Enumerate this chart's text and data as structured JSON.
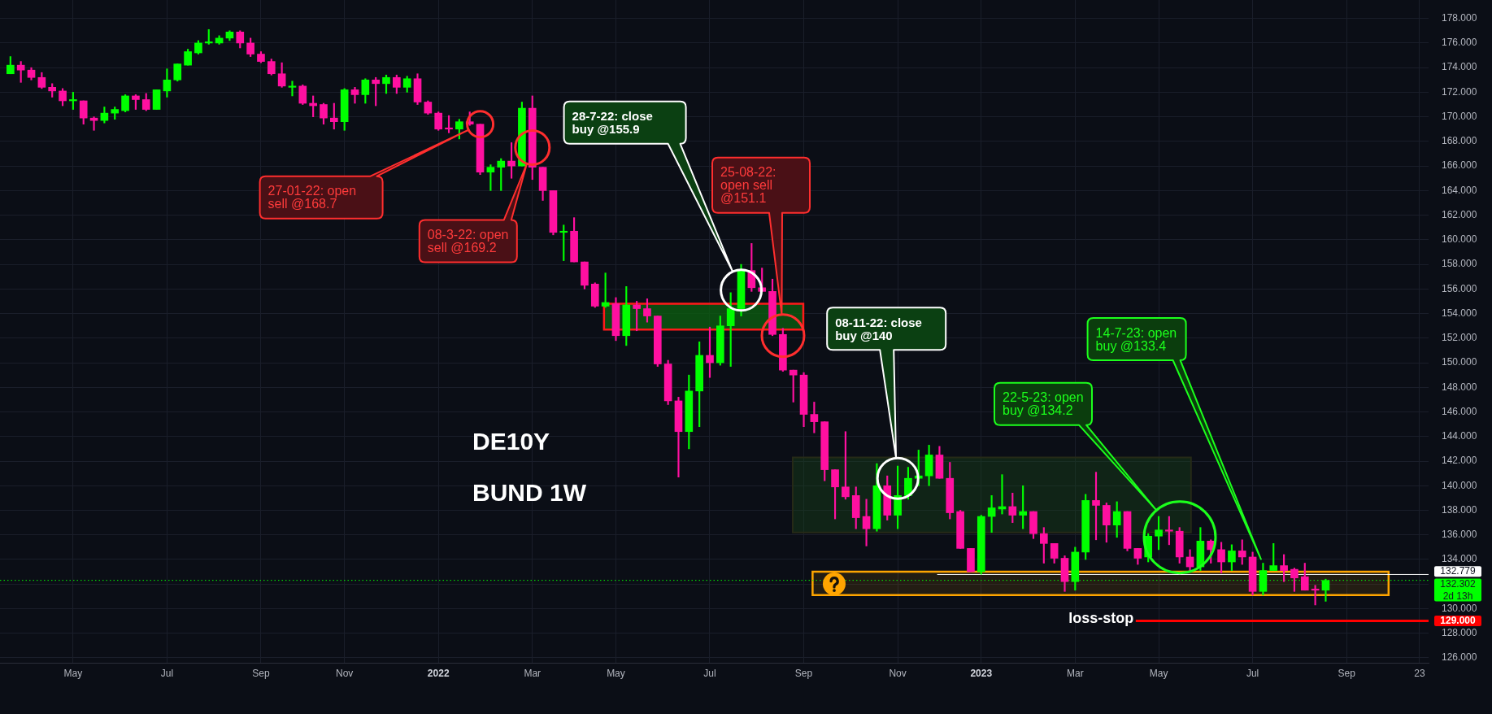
{
  "chart_data": {
    "type": "candlestick",
    "title": "DE10Y",
    "subtitle": "BUND 1W",
    "x": [
      "2021-03-22",
      "2021-03-29",
      "2021-04-05",
      "2021-04-12",
      "2021-04-19",
      "2021-04-26",
      "2021-05-03",
      "2021-05-10",
      "2021-05-17",
      "2021-05-24",
      "2021-05-31",
      "2021-06-07",
      "2021-06-14",
      "2021-06-21",
      "2021-06-28",
      "2021-07-05",
      "2021-07-12",
      "2021-07-19",
      "2021-07-26",
      "2021-08-02",
      "2021-08-09",
      "2021-08-16",
      "2021-08-23",
      "2021-08-30",
      "2021-09-06",
      "2021-09-13",
      "2021-09-20",
      "2021-09-27",
      "2021-10-04",
      "2021-10-11",
      "2021-10-18",
      "2021-10-25",
      "2021-11-01",
      "2021-11-08",
      "2021-11-15",
      "2021-11-22",
      "2021-11-29",
      "2021-12-06",
      "2021-12-13",
      "2021-12-20",
      "2021-12-27",
      "2022-01-03",
      "2022-01-10",
      "2022-01-17",
      "2022-01-24",
      "2022-01-31",
      "2022-02-07",
      "2022-02-14",
      "2022-02-21",
      "2022-02-28",
      "2022-03-07",
      "2022-03-14",
      "2022-03-21",
      "2022-03-28",
      "2022-04-04",
      "2022-04-11",
      "2022-04-18",
      "2022-04-25",
      "2022-05-02",
      "2022-05-09",
      "2022-05-16",
      "2022-05-23",
      "2022-05-30",
      "2022-06-06",
      "2022-06-13",
      "2022-06-20",
      "2022-06-27",
      "2022-07-04",
      "2022-07-11",
      "2022-07-18",
      "2022-07-25",
      "2022-08-01",
      "2022-08-08",
      "2022-08-15",
      "2022-08-22",
      "2022-08-29",
      "2022-09-05",
      "2022-09-12",
      "2022-09-19",
      "2022-09-26",
      "2022-10-03",
      "2022-10-10",
      "2022-10-17",
      "2022-10-24",
      "2022-10-31",
      "2022-11-07",
      "2022-11-14",
      "2022-11-21",
      "2022-11-28",
      "2022-12-05",
      "2022-12-12",
      "2022-12-19",
      "2022-12-26",
      "2023-01-02",
      "2023-01-09",
      "2023-01-16",
      "2023-01-23",
      "2023-01-30",
      "2023-02-06",
      "2023-02-13",
      "2023-02-20",
      "2023-02-27",
      "2023-03-06",
      "2023-03-13",
      "2023-03-20",
      "2023-03-27",
      "2023-04-03",
      "2023-04-10",
      "2023-04-17",
      "2023-04-24",
      "2023-05-01",
      "2023-05-08",
      "2023-05-15",
      "2023-05-22",
      "2023-05-29",
      "2023-06-05",
      "2023-06-12",
      "2023-06-19",
      "2023-06-26",
      "2023-07-03",
      "2023-07-10",
      "2023-07-17",
      "2023-07-24",
      "2023-07-31",
      "2023-08-07",
      "2023-08-14",
      "2023-08-21"
    ],
    "ohlc": [
      [
        173.5,
        174.9,
        173.5,
        174.2
      ],
      [
        174.2,
        174.5,
        172.8,
        173.8
      ],
      [
        173.8,
        174.0,
        173.0,
        173.2
      ],
      [
        173.2,
        173.6,
        172.3,
        172.4
      ],
      [
        172.4,
        172.7,
        171.6,
        172.1
      ],
      [
        172.1,
        172.3,
        170.9,
        171.3
      ],
      [
        171.3,
        172.0,
        170.6,
        171.4
      ],
      [
        171.3,
        171.3,
        169.4,
        169.9
      ],
      [
        169.9,
        170.0,
        168.9,
        169.7
      ],
      [
        169.7,
        170.8,
        169.5,
        170.3
      ],
      [
        170.3,
        170.8,
        169.8,
        170.6
      ],
      [
        170.5,
        171.8,
        170.4,
        171.7
      ],
      [
        171.7,
        171.8,
        170.6,
        171.4
      ],
      [
        171.4,
        171.9,
        170.5,
        170.6
      ],
      [
        170.6,
        172.2,
        170.6,
        172.2
      ],
      [
        172.1,
        173.9,
        171.6,
        173.0
      ],
      [
        173.0,
        174.3,
        172.9,
        174.3
      ],
      [
        174.2,
        175.5,
        174.2,
        175.3
      ],
      [
        175.2,
        176.2,
        175.1,
        176.0
      ],
      [
        176.0,
        177.1,
        175.9,
        176.1
      ],
      [
        176.0,
        176.6,
        175.9,
        176.4
      ],
      [
        176.4,
        177.0,
        176.2,
        176.9
      ],
      [
        176.9,
        177.0,
        175.6,
        176.0
      ],
      [
        176.0,
        176.4,
        174.9,
        175.1
      ],
      [
        175.1,
        175.3,
        174.4,
        174.5
      ],
      [
        174.5,
        174.7,
        173.4,
        173.5
      ],
      [
        173.5,
        174.4,
        172.4,
        172.5
      ],
      [
        172.4,
        172.9,
        171.7,
        172.5
      ],
      [
        172.5,
        172.6,
        171.0,
        171.1
      ],
      [
        171.1,
        171.7,
        170.0,
        170.9
      ],
      [
        171.0,
        171.1,
        169.4,
        169.9
      ],
      [
        169.9,
        171.1,
        169.0,
        169.6
      ],
      [
        169.6,
        172.3,
        168.9,
        172.2
      ],
      [
        172.2,
        172.4,
        171.1,
        171.8
      ],
      [
        171.8,
        173.1,
        171.1,
        173.0
      ],
      [
        173.0,
        173.2,
        170.9,
        172.7
      ],
      [
        172.7,
        173.4,
        171.9,
        173.2
      ],
      [
        173.2,
        173.4,
        171.9,
        172.4
      ],
      [
        172.4,
        173.3,
        172.0,
        173.1
      ],
      [
        173.1,
        173.5,
        171.0,
        171.2
      ],
      [
        171.2,
        171.3,
        170.2,
        170.3
      ],
      [
        170.3,
        170.4,
        168.9,
        169.0
      ],
      [
        169.1,
        170.1,
        168.7,
        169.0
      ],
      [
        169.0,
        169.8,
        168.2,
        169.6
      ],
      [
        169.6,
        170.4,
        169.3,
        169.4
      ],
      [
        169.4,
        169.4,
        165.3,
        165.5
      ],
      [
        165.5,
        166.1,
        164.0,
        165.9
      ],
      [
        165.9,
        166.6,
        164.0,
        166.4
      ],
      [
        166.4,
        167.9,
        165.0,
        166.0
      ],
      [
        166.0,
        171.2,
        166.0,
        170.7
      ],
      [
        170.7,
        171.7,
        164.9,
        165.9
      ],
      [
        165.9,
        165.9,
        163.2,
        164.0
      ],
      [
        164.0,
        164.0,
        160.4,
        160.6
      ],
      [
        160.6,
        161.2,
        158.3,
        160.7
      ],
      [
        160.7,
        161.8,
        158.2,
        158.2
      ],
      [
        158.2,
        158.2,
        156.0,
        156.3
      ],
      [
        156.4,
        156.5,
        154.5,
        154.6
      ],
      [
        154.6,
        157.3,
        154.5,
        154.9
      ],
      [
        154.8,
        155.3,
        151.8,
        152.2
      ],
      [
        152.2,
        156.2,
        151.4,
        154.7
      ],
      [
        154.7,
        155.0,
        152.6,
        154.4
      ],
      [
        154.4,
        155.2,
        153.3,
        153.8
      ],
      [
        153.8,
        153.8,
        149.7,
        149.9
      ],
      [
        149.9,
        150.2,
        146.6,
        146.9
      ],
      [
        146.9,
        147.2,
        140.7,
        144.4
      ],
      [
        144.4,
        149.0,
        143.0,
        147.7
      ],
      [
        147.7,
        151.7,
        144.8,
        150.6
      ],
      [
        150.6,
        152.9,
        148.8,
        150.0
      ],
      [
        150.0,
        153.8,
        149.8,
        153.0
      ],
      [
        153.0,
        155.7,
        149.7,
        154.4
      ],
      [
        154.4,
        158.0,
        153.8,
        157.5
      ],
      [
        157.5,
        159.7,
        155.8,
        156.1
      ],
      [
        156.1,
        157.7,
        155.8,
        155.8
      ],
      [
        155.8,
        156.8,
        152.2,
        152.3
      ],
      [
        152.3,
        152.8,
        149.3,
        149.4
      ],
      [
        149.4,
        149.4,
        146.8,
        149.0
      ],
      [
        149.0,
        149.2,
        144.8,
        145.8
      ],
      [
        145.8,
        146.8,
        144.3,
        145.2
      ],
      [
        145.2,
        145.2,
        140.4,
        141.3
      ],
      [
        141.3,
        141.3,
        137.3,
        139.9
      ],
      [
        139.9,
        144.4,
        138.9,
        139.1
      ],
      [
        139.2,
        139.9,
        136.5,
        137.4
      ],
      [
        137.5,
        138.9,
        135.1,
        136.5
      ],
      [
        136.5,
        141.8,
        136.3,
        140.0
      ],
      [
        140.0,
        140.8,
        137.2,
        137.6
      ],
      [
        137.6,
        141.6,
        136.5,
        139.2
      ],
      [
        139.2,
        141.5,
        138.9,
        140.6
      ],
      [
        140.6,
        142.9,
        140.0,
        140.8
      ],
      [
        140.8,
        143.3,
        140.0,
        142.5
      ],
      [
        142.5,
        143.2,
        140.6,
        140.6
      ],
      [
        140.6,
        141.9,
        137.3,
        137.8
      ],
      [
        137.9,
        138.0,
        134.9,
        134.9
      ],
      [
        134.9,
        134.9,
        133.0,
        133.0
      ],
      [
        133.0,
        137.6,
        132.8,
        137.5
      ],
      [
        137.5,
        139.2,
        136.2,
        138.2
      ],
      [
        138.1,
        140.9,
        137.7,
        138.3
      ],
      [
        138.3,
        139.4,
        137.0,
        137.6
      ],
      [
        137.6,
        140.0,
        136.5,
        137.9
      ],
      [
        137.9,
        137.9,
        135.7,
        136.1
      ],
      [
        136.1,
        136.6,
        133.7,
        135.3
      ],
      [
        135.3,
        135.3,
        133.7,
        134.1
      ],
      [
        134.1,
        134.3,
        131.4,
        132.2
      ],
      [
        132.2,
        135.0,
        131.5,
        134.6
      ],
      [
        134.6,
        139.3,
        134.0,
        138.8
      ],
      [
        138.8,
        141.1,
        135.6,
        138.4
      ],
      [
        138.4,
        138.6,
        135.4,
        136.8
      ],
      [
        136.8,
        138.7,
        135.8,
        137.9
      ],
      [
        137.9,
        137.9,
        134.7,
        134.9
      ],
      [
        134.9,
        134.9,
        133.6,
        134.1
      ],
      [
        134.2,
        136.1,
        133.8,
        135.9
      ],
      [
        135.9,
        137.5,
        134.8,
        136.4
      ],
      [
        136.4,
        137.5,
        135.2,
        136.3
      ],
      [
        136.3,
        136.6,
        133.7,
        134.2
      ],
      [
        134.2,
        134.8,
        133.0,
        133.4
      ],
      [
        133.4,
        136.6,
        133.1,
        135.5
      ],
      [
        135.5,
        135.6,
        133.7,
        134.8
      ],
      [
        134.8,
        135.4,
        132.9,
        133.8
      ],
      [
        133.8,
        135.2,
        133.1,
        134.7
      ],
      [
        134.7,
        135.6,
        133.6,
        134.2
      ],
      [
        134.2,
        134.6,
        131.1,
        131.4
      ],
      [
        131.4,
        133.7,
        131.1,
        133.1
      ],
      [
        133.1,
        135.3,
        133.1,
        133.5
      ],
      [
        133.5,
        134.4,
        132.2,
        133.1
      ],
      [
        133.2,
        133.3,
        131.4,
        132.5
      ],
      [
        132.6,
        133.7,
        131.5,
        131.5
      ],
      [
        131.6,
        131.9,
        130.3,
        131.5
      ],
      [
        131.5,
        132.4,
        130.6,
        132.3
      ]
    ],
    "colors": [
      "#00ff00",
      "#ff10a0",
      "#ff10a0",
      "#ff10a0",
      "#ff10a0",
      "#ff10a0",
      "#00ff00",
      "#ff10a0",
      "#ff10a0",
      "#00ff00",
      "#00ff00",
      "#00ff00",
      "#ff10a0",
      "#ff10a0",
      "#00ff00",
      "#00ff00",
      "#00ff00",
      "#00ff00",
      "#00ff00",
      "#00ff00",
      "#00ff00",
      "#00ff00",
      "#ff10a0",
      "#ff10a0",
      "#ff10a0",
      "#ff10a0",
      "#ff10a0",
      "#00ff00",
      "#ff10a0",
      "#ff10a0",
      "#ff10a0",
      "#ff10a0",
      "#00ff00",
      "#ff10a0",
      "#00ff00",
      "#ff10a0",
      "#00ff00",
      "#ff10a0",
      "#00ff00",
      "#ff10a0",
      "#ff10a0",
      "#ff10a0",
      "#ff10a0",
      "#00ff00",
      "#ff10a0",
      "#ff10a0",
      "#00ff00",
      "#00ff00",
      "#ff10a0",
      "#00ff00",
      "#ff10a0",
      "#ff10a0",
      "#ff10a0",
      "#00ff00",
      "#ff10a0",
      "#ff10a0",
      "#ff10a0",
      "#00ff00",
      "#ff10a0",
      "#00ff00",
      "#ff10a0",
      "#ff10a0",
      "#ff10a0",
      "#ff10a0",
      "#ff10a0",
      "#00ff00",
      "#00ff00",
      "#ff10a0",
      "#00ff00",
      "#00ff00",
      "#00ff00",
      "#ff10a0",
      "#ff10a0",
      "#ff10a0",
      "#ff10a0",
      "#ff10a0",
      "#ff10a0",
      "#ff10a0",
      "#ff10a0",
      "#ff10a0",
      "#ff10a0",
      "#ff10a0",
      "#ff10a0",
      "#00ff00",
      "#ff10a0",
      "#00ff00",
      "#00ff00",
      "#00ff00",
      "#00ff00",
      "#ff10a0",
      "#ff10a0",
      "#ff10a0",
      "#ff10a0",
      "#00ff00",
      "#00ff00",
      "#00ff00",
      "#ff10a0",
      "#00ff00",
      "#ff10a0",
      "#ff10a0",
      "#ff10a0",
      "#ff10a0",
      "#00ff00",
      "#00ff00",
      "#ff10a0",
      "#ff10a0",
      "#00ff00",
      "#ff10a0",
      "#ff10a0",
      "#00ff00",
      "#00ff00",
      "#ff10a0",
      "#ff10a0",
      "#ff10a0",
      "#00ff00",
      "#ff10a0",
      "#ff10a0",
      "#00ff00",
      "#ff10a0",
      "#ff10a0",
      "#00ff00",
      "#00ff00",
      "#ff10a0",
      "#ff10a0",
      "#ff10a0",
      "#ff10a0",
      "#00ff00"
    ],
    "xlim": [
      "2021-03-15",
      "2023-10-29"
    ],
    "xticks": [
      {
        "value": "2021-05-03",
        "label": "May"
      },
      {
        "value": "2021-07-05",
        "label": "Jul"
      },
      {
        "value": "2021-09-06",
        "label": "Sep"
      },
      {
        "value": "2021-11-01",
        "label": "Nov"
      },
      {
        "value": "2022-01-03",
        "label": "2022"
      },
      {
        "value": "2022-03-07",
        "label": "Mar"
      },
      {
        "value": "2022-05-02",
        "label": "May"
      },
      {
        "value": "2022-07-04",
        "label": "Jul"
      },
      {
        "value": "2022-09-05",
        "label": "Sep"
      },
      {
        "value": "2022-11-07",
        "label": "Nov"
      },
      {
        "value": "2023-01-02",
        "label": "2023"
      },
      {
        "value": "2023-03-06",
        "label": "Mar"
      },
      {
        "value": "2023-05-01",
        "label": "May"
      },
      {
        "value": "2023-07-03",
        "label": "Jul"
      },
      {
        "value": "2023-09-04",
        "label": "Sep"
      },
      {
        "value": "2023-10-23",
        "label": "23"
      }
    ],
    "ylim": [
      125.6,
      179.5
    ],
    "yticks": [
      {
        "value": 126,
        "label": "126.000"
      },
      {
        "value": 128,
        "label": "128.000"
      },
      {
        "value": 130,
        "label": "130.000"
      },
      {
        "value": 132,
        "label": null
      },
      {
        "value": 134,
        "label": "134.000"
      },
      {
        "value": 136,
        "label": "136.000"
      },
      {
        "value": 138,
        "label": "138.000"
      },
      {
        "value": 140,
        "label": "140.000"
      },
      {
        "value": 142,
        "label": "142.000"
      },
      {
        "value": 144,
        "label": "144.000"
      },
      {
        "value": 146,
        "label": "146.000"
      },
      {
        "value": 148,
        "label": "148.000"
      },
      {
        "value": 150,
        "label": "150.000"
      },
      {
        "value": 152,
        "label": "152.000"
      },
      {
        "value": 154,
        "label": "154.000"
      },
      {
        "value": 156,
        "label": "156.000"
      },
      {
        "value": 158,
        "label": "158.000"
      },
      {
        "value": 160,
        "label": "160.000"
      },
      {
        "value": 162,
        "label": "162.000"
      },
      {
        "value": 164,
        "label": "164.000"
      },
      {
        "value": 166,
        "label": "166.000"
      },
      {
        "value": 168,
        "label": "168.000"
      },
      {
        "value": 170,
        "label": "170.000"
      },
      {
        "value": 172,
        "label": "172.000"
      },
      {
        "value": 174,
        "label": "174.000"
      },
      {
        "value": 176,
        "label": "176.000"
      },
      {
        "value": 178,
        "label": "178.000"
      }
    ],
    "grid": true,
    "bands": [
      {
        "axis": "y",
        "from": 152.7,
        "to": 154.8,
        "color": "#0b5c10"
      },
      {
        "axis": "y",
        "from": 136.2,
        "to": 142.3,
        "color": "#1a4d1a"
      },
      {
        "axis": "y",
        "from": 131.1,
        "to": 133.0,
        "color": "#ffa500"
      }
    ],
    "ref_lines": [
      {
        "axis": "y",
        "value": 132.779,
        "color": "#ffffff",
        "label": "132.779"
      },
      {
        "axis": "y",
        "value": 132.302,
        "color": "#00ff00",
        "line_style": "dotted",
        "label": "132.302"
      },
      {
        "axis": "y",
        "value": 129,
        "color": "#ff0000",
        "label": "129.000"
      }
    ],
    "annotations": [
      "27-01-22: open sell @168.7",
      "08-3-22: open sell @169.2",
      "28-7-22: close buy @155.9",
      "25-08-22: open sell @151.1",
      "08-11-22: close buy @140",
      "22-5-23: open buy @134.2",
      "14-7-23: open buy @133.4",
      {
        "text": "loss-stop",
        "x": "2023-04-17",
        "y": 129
      },
      "2d 13h"
    ]
  }
}
